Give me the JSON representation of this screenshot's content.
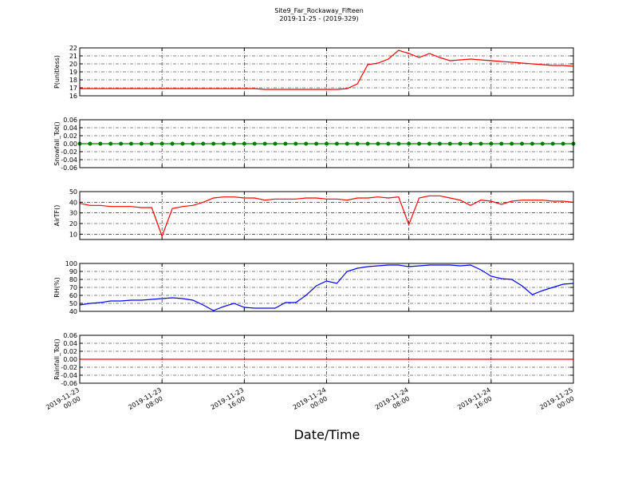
{
  "title": "Site9_Far_Rockaway_Fifteen",
  "subtitle": "2019-11-25 - (2019-329)",
  "xlabel": "Date/Time",
  "xlim": [
    "2019-11-23 00:00",
    "2019-11-25 00:00"
  ],
  "xticks": [
    "2019-11-23 00:00",
    "2019-11-23 08:00",
    "2019-11-23 16:00",
    "2019-11-24 00:00",
    "2019-11-24 08:00",
    "2019-11-24 16:00",
    "2019-11-25 00:00"
  ],
  "x": [
    "2019-11-23 00:00",
    "2019-11-23 01:00",
    "2019-11-23 02:00",
    "2019-11-23 03:00",
    "2019-11-23 04:00",
    "2019-11-23 05:00",
    "2019-11-23 06:00",
    "2019-11-23 07:00",
    "2019-11-23 08:00",
    "2019-11-23 09:00",
    "2019-11-23 10:00",
    "2019-11-23 11:00",
    "2019-11-23 12:00",
    "2019-11-23 13:00",
    "2019-11-23 14:00",
    "2019-11-23 15:00",
    "2019-11-23 16:00",
    "2019-11-23 17:00",
    "2019-11-23 18:00",
    "2019-11-23 19:00",
    "2019-11-23 20:00",
    "2019-11-23 21:00",
    "2019-11-23 22:00",
    "2019-11-23 23:00",
    "2019-11-24 00:00",
    "2019-11-24 01:00",
    "2019-11-24 02:00",
    "2019-11-24 03:00",
    "2019-11-24 04:00",
    "2019-11-24 05:00",
    "2019-11-24 06:00",
    "2019-11-24 07:00",
    "2019-11-24 08:00",
    "2019-11-24 09:00",
    "2019-11-24 10:00",
    "2019-11-24 11:00",
    "2019-11-24 12:00",
    "2019-11-24 13:00",
    "2019-11-24 14:00",
    "2019-11-24 15:00",
    "2019-11-24 16:00",
    "2019-11-24 17:00",
    "2019-11-24 18:00",
    "2019-11-24 19:00",
    "2019-11-24 20:00",
    "2019-11-24 21:00",
    "2019-11-24 22:00",
    "2019-11-24 23:00",
    "2019-11-25 00:00"
  ],
  "chart_data": [
    {
      "type": "line",
      "ylabel": "P(unitless)",
      "color": "#ff0000",
      "grid": true,
      "ylim": [
        16,
        22
      ],
      "yticks": [
        16,
        17,
        18,
        19,
        20,
        21,
        22
      ],
      "values": [
        16.9,
        16.9,
        16.9,
        16.9,
        16.9,
        16.9,
        16.9,
        16.9,
        16.9,
        16.9,
        16.9,
        16.9,
        16.9,
        16.9,
        16.9,
        16.9,
        16.9,
        16.9,
        16.8,
        16.8,
        16.8,
        16.8,
        16.8,
        16.8,
        16.8,
        16.8,
        16.9,
        17.5,
        19.9,
        20.1,
        20.6,
        21.7,
        21.3,
        20.8,
        21.3,
        20.8,
        20.4,
        20.5,
        20.6,
        20.5,
        20.4,
        20.3,
        20.2,
        20.1,
        20.0,
        19.9,
        19.8,
        19.8,
        19.7
      ]
    },
    {
      "type": "line",
      "ylabel": "Snowfall_Tot()",
      "color": "#008000",
      "grid": true,
      "marker": "circle",
      "ylim": [
        -0.06,
        0.06
      ],
      "yticks": [
        -0.06,
        -0.04,
        -0.02,
        {
          "value": 0,
          "label": "0.00"
        },
        0.02,
        0.04,
        0.06
      ],
      "values": [
        0,
        0,
        0,
        0,
        0,
        0,
        0,
        0,
        0,
        0,
        0,
        0,
        0,
        0,
        0,
        0,
        0,
        0,
        0,
        0,
        0,
        0,
        0,
        0,
        0,
        0,
        0,
        0,
        0,
        0,
        0,
        0,
        0,
        0,
        0,
        0,
        0,
        0,
        0,
        0,
        0,
        0,
        0,
        0,
        0,
        0,
        0,
        0,
        0
      ]
    },
    {
      "type": "line",
      "ylabel": "AirTF()",
      "color": "#ff0000",
      "grid": true,
      "ylim": [
        5,
        50
      ],
      "yticks": [
        10,
        20,
        30,
        40,
        50
      ],
      "values": [
        39,
        37,
        37,
        36,
        36,
        36,
        35,
        35,
        8,
        34,
        36,
        37,
        40,
        44,
        45,
        45,
        44,
        44,
        42,
        43,
        43,
        43,
        44,
        44,
        43,
        43,
        42,
        44,
        44,
        45,
        44,
        45,
        19,
        44,
        46,
        46,
        44,
        42,
        37,
        42,
        41,
        38,
        41,
        42,
        42,
        42,
        41,
        41,
        40
      ]
    },
    {
      "type": "line",
      "ylabel": "RH(%)",
      "color": "#0000ff",
      "grid": true,
      "ylim": [
        40,
        100
      ],
      "yticks": [
        40,
        50,
        60,
        70,
        80,
        90,
        100
      ],
      "values": [
        48,
        50,
        51,
        53,
        53,
        54,
        54,
        55,
        56,
        57,
        56,
        54,
        48,
        41,
        46,
        50,
        45,
        44,
        44,
        44,
        51,
        51,
        60,
        72,
        78,
        75,
        90,
        94,
        96,
        97,
        98,
        98,
        96,
        97,
        98,
        98,
        98,
        97,
        98,
        92,
        84,
        81,
        80,
        72,
        61,
        66,
        70,
        74,
        75
      ]
    },
    {
      "type": "line",
      "ylabel": "Rainfall_Tot()",
      "color": "#ff0000",
      "grid": true,
      "ylim": [
        -0.06,
        0.06
      ],
      "yticks": [
        -0.06,
        -0.04,
        -0.02,
        {
          "value": 0,
          "label": "0.00"
        },
        0.02,
        0.04,
        0.06
      ],
      "values": [
        0,
        0,
        0,
        0,
        0,
        0,
        0,
        0,
        0,
        0,
        0,
        0,
        0,
        0,
        0,
        0,
        0,
        0,
        0,
        0,
        0,
        0,
        0,
        0,
        0,
        0,
        0,
        0,
        0,
        0,
        0,
        0,
        0,
        0,
        0,
        0,
        0,
        0,
        0,
        0,
        0,
        0,
        0,
        0,
        0,
        0,
        0,
        0,
        0
      ]
    }
  ]
}
